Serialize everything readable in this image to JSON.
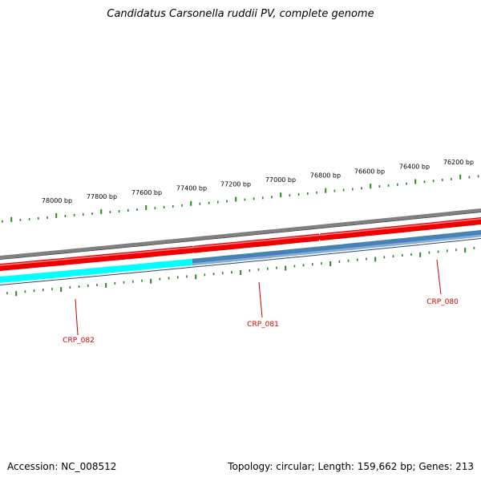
{
  "title": "Candidatus Carsonella ruddii PV, complete genome",
  "footer": {
    "accession": "Accession: NC_008512",
    "topology": "Topology: circular; Length: 159,662 bp; Genes: 213"
  },
  "colors": {
    "backbone": "#808080",
    "forward_gene": "#ee0000",
    "reverse_gene": "#4682b4",
    "reverse_gene_light": "#87aedb",
    "cyan_gene": "#00ffff",
    "ticks": "#228b22",
    "gene_label": "#cc0000"
  },
  "scale": {
    "labels": [
      "78000 bp",
      "77800 bp",
      "77600 bp",
      "77400 bp",
      "77200 bp",
      "77000 bp",
      "76800 bp",
      "76600 bp",
      "76400 bp",
      "76200 bp"
    ]
  },
  "genes": [
    {
      "name": "CRP_082"
    },
    {
      "name": "CRP_081"
    },
    {
      "name": "CRP_080"
    }
  ]
}
